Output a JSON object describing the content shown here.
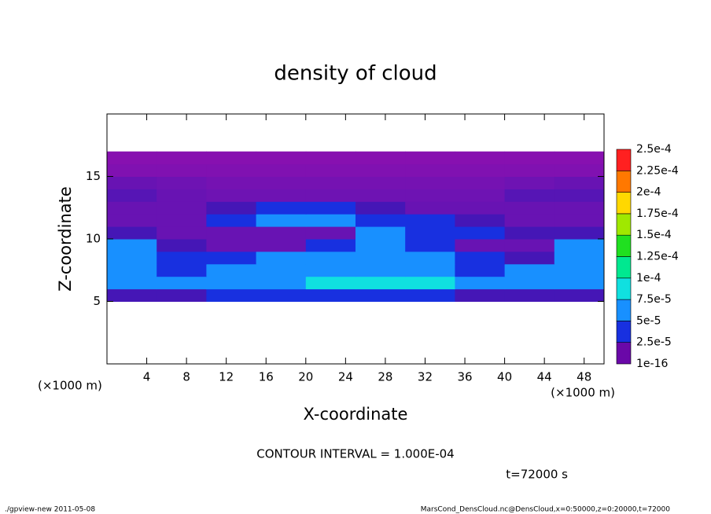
{
  "chart_data": {
    "type": "heatmap",
    "title": "density of cloud",
    "x_label": "X-coordinate",
    "y_label": "Z-coordinate",
    "x_unit_left": "(×1000 m)",
    "x_unit_right": "(×1000 m)",
    "contour_note": "CONTOUR INTERVAL = 1.000E-04",
    "time_note": "t=72000 s",
    "footer_left": "./gpview-new   2011-05-08",
    "footer_right": "MarsCond_DensCloud.nc@DensCloud,x=0:50000,z=0:20000,t=72000",
    "xlim": [
      0,
      50
    ],
    "ylim": [
      0,
      20
    ],
    "xticks": [
      4,
      8,
      12,
      16,
      20,
      24,
      28,
      32,
      36,
      40,
      44,
      48
    ],
    "yticks": [
      5,
      10,
      15
    ],
    "x": [
      2.5,
      7.5,
      12.5,
      17.5,
      22.5,
      27.5,
      32.5,
      37.5,
      42.5,
      47.5
    ],
    "z": [
      5.5,
      6.5,
      7.5,
      8.5,
      9.5,
      10.5,
      11.5,
      12.5,
      13.5,
      14.5,
      15.5,
      16.5
    ],
    "values": [
      [
        2e-05,
        2e-05,
        3e-05,
        3e-05,
        3e-05,
        3e-05,
        3e-05,
        2e-05,
        2e-05,
        2e-05
      ],
      [
        6e-05,
        6e-05,
        6e-05,
        7e-05,
        8e-05,
        8e-05,
        8e-05,
        6e-05,
        6e-05,
        6e-05
      ],
      [
        6e-05,
        4e-05,
        5e-05,
        6e-05,
        7e-05,
        7e-05,
        6e-05,
        4e-05,
        5e-05,
        6e-05
      ],
      [
        6e-05,
        3e-05,
        4e-05,
        5e-05,
        5e-05,
        5e-05,
        5e-05,
        3e-05,
        2e-05,
        5e-05
      ],
      [
        5e-05,
        2e-05,
        1e-05,
        1e-05,
        3e-05,
        5e-05,
        4e-05,
        1e-05,
        1e-05,
        5e-05
      ],
      [
        2e-05,
        1e-05,
        1e-05,
        1e-05,
        1e-05,
        5e-05,
        4e-05,
        3e-05,
        2e-05,
        2e-05
      ],
      [
        1e-05,
        1e-05,
        3e-05,
        5e-05,
        5e-05,
        4e-05,
        3e-05,
        2e-05,
        1e-05,
        1e-05
      ],
      [
        1e-05,
        1e-05,
        2e-05,
        4e-05,
        3e-05,
        2e-05,
        1e-05,
        1e-05,
        1e-05,
        1e-05
      ],
      [
        1.5e-05,
        1e-05,
        8e-06,
        8e-06,
        8e-06,
        8e-06,
        8e-06,
        8e-06,
        1.5e-05,
        1.5e-05
      ],
      [
        1e-05,
        8e-06,
        6e-06,
        6e-06,
        6e-06,
        6e-06,
        6e-06,
        6e-06,
        8e-06,
        1e-05
      ],
      [
        3e-06,
        3e-06,
        3e-06,
        3e-06,
        3e-06,
        3e-06,
        3e-06,
        3e-06,
        3e-06,
        3e-06
      ],
      [
        1e-06,
        1e-06,
        1e-06,
        1e-06,
        1e-06,
        1e-06,
        1e-06,
        1e-06,
        1e-06,
        1e-06
      ]
    ],
    "levels": [
      {
        "value": 1e-16,
        "label": "1e-16"
      },
      {
        "value": 2.5e-05,
        "label": "2.5e-5"
      },
      {
        "value": 5e-05,
        "label": "5e-5"
      },
      {
        "value": 7.5e-05,
        "label": "7.5e-5"
      },
      {
        "value": 0.0001,
        "label": "1e-4"
      },
      {
        "value": 0.000125,
        "label": "1.25e-4"
      },
      {
        "value": 0.00015,
        "label": "1.5e-4"
      },
      {
        "value": 0.000175,
        "label": "1.75e-4"
      },
      {
        "value": 0.0002,
        "label": "2e-4"
      },
      {
        "value": 0.000225,
        "label": "2.25e-4"
      },
      {
        "value": 0.00025,
        "label": "2.5e-4"
      }
    ],
    "colors": [
      "#6a08a8",
      "#1830e0",
      "#1890ff",
      "#10e0e0",
      "#00e890",
      "#20e020",
      "#a0e800",
      "#ffd800",
      "#ff7800",
      "#ff2020"
    ]
  }
}
